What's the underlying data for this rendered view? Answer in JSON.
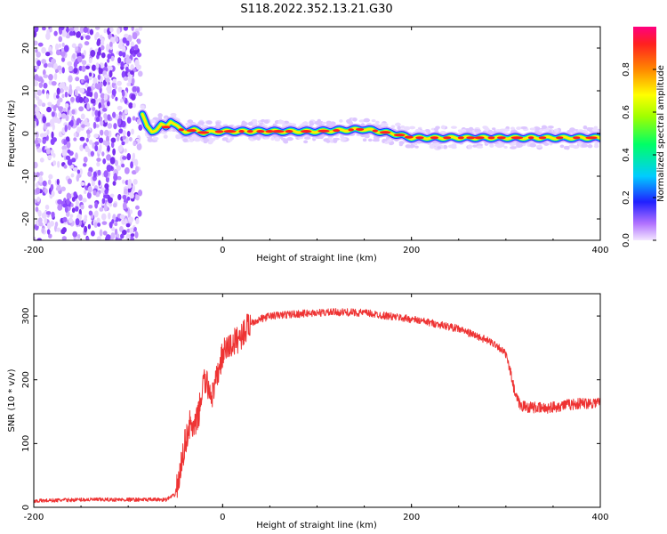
{
  "title": "S118.2022.352.13.21.G30",
  "chart_data": [
    {
      "type": "heatmap",
      "xlabel": "Height of straight line (km)",
      "ylabel": "Frequency (Hz)",
      "xlim": [
        -200,
        400
      ],
      "ylim": [
        -25,
        25
      ],
      "xticks": [
        -200,
        0,
        200,
        400
      ],
      "yticks": [
        -20,
        -10,
        0,
        10,
        20
      ],
      "colorbar": {
        "label": "Normalized spectral amplitude",
        "range": [
          0.0,
          1.0
        ],
        "ticks": [
          0.0,
          0.2,
          0.4,
          0.6,
          0.8
        ]
      },
      "ridge": {
        "x": [
          -85,
          -80,
          -75,
          -70,
          -65,
          -60,
          -55,
          -50,
          -45,
          -40,
          -30,
          -20,
          0,
          50,
          100,
          150,
          180,
          200,
          250,
          300,
          350,
          400
        ],
        "frequency": [
          4.5,
          1.5,
          0.5,
          1.0,
          2.0,
          1.5,
          3.0,
          2.0,
          1.0,
          0.5,
          0.8,
          0.2,
          0.5,
          0.5,
          0.5,
          1.0,
          0.0,
          -1.0,
          -1.0,
          -1.0,
          -1.0,
          -1.0
        ]
      }
    },
    {
      "type": "line",
      "xlabel": "Height of straight line (km)",
      "ylabel": "SNR (10 * v/v)",
      "xlim": [
        -200,
        400
      ],
      "ylim": [
        0,
        335
      ],
      "xticks": [
        -200,
        0,
        200,
        400
      ],
      "yticks": [
        0,
        100,
        200,
        300
      ],
      "series_color": "#ee3333",
      "series": [
        {
          "x": [
            -200,
            -150,
            -100,
            -60,
            -50,
            -45,
            -40,
            -35,
            -30,
            -25,
            -20,
            -10,
            -5,
            0,
            5,
            10,
            20,
            30,
            40,
            50,
            75,
            100,
            125,
            150,
            175,
            200,
            225,
            250,
            275,
            290,
            300,
            305,
            310,
            315,
            320,
            340,
            360,
            380,
            400
          ],
          "y": [
            10,
            12,
            12,
            12,
            20,
            55,
            100,
            130,
            120,
            150,
            200,
            175,
            210,
            240,
            250,
            255,
            270,
            290,
            295,
            300,
            303,
            305,
            306,
            305,
            300,
            295,
            288,
            280,
            265,
            255,
            240,
            210,
            175,
            160,
            158,
            155,
            160,
            163,
            165
          ]
        }
      ]
    }
  ]
}
